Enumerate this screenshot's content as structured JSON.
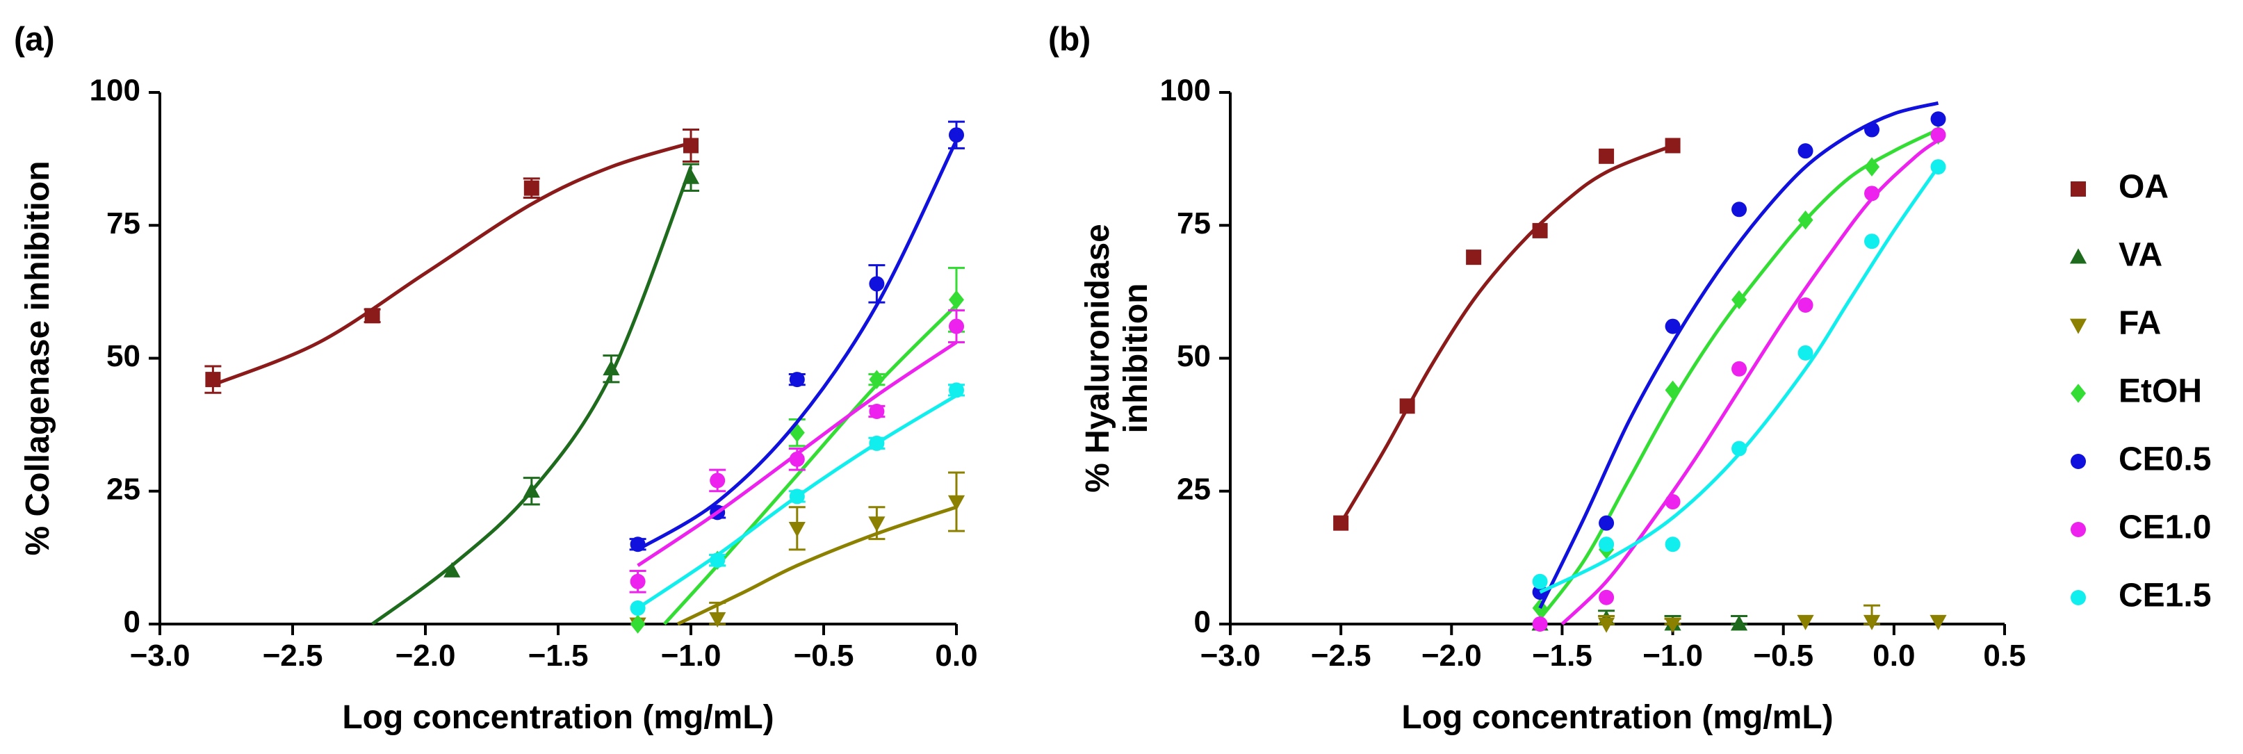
{
  "chart_data": [
    {
      "type": "scatter",
      "panel_label": "(a)",
      "title": "",
      "xlabel": "Log concentration (mg/mL)",
      "ylabel": "% Collagenase inhibition",
      "xlim": [
        -3.0,
        0.0
      ],
      "ylim": [
        0,
        100
      ],
      "x_ticks": [
        -3.0,
        -2.5,
        -2.0,
        -1.5,
        -1.0,
        -0.5,
        0.0
      ],
      "x_tick_labels": [
        "−3.0",
        "−2.5",
        "−2.0",
        "−1.5",
        "−1.0",
        "−0.5",
        "0.0"
      ],
      "y_ticks": [
        0,
        25,
        50,
        75,
        100
      ],
      "y_tick_labels": [
        "0",
        "25",
        "50",
        "75",
        "100"
      ],
      "series": [
        {
          "name": "OA",
          "color": "#8b1a1a",
          "marker": "square",
          "x": [
            -2.8,
            -2.2,
            -1.6,
            -1.0
          ],
          "y": [
            46,
            58,
            82,
            90
          ],
          "err": [
            2.5,
            1.2,
            1.8,
            3.0
          ],
          "fit": [
            [
              -2.8,
              45
            ],
            [
              -2.4,
              53
            ],
            [
              -2.0,
              66
            ],
            [
              -1.6,
              79
            ],
            [
              -1.3,
              86
            ],
            [
              -1.0,
              90.5
            ]
          ]
        },
        {
          "name": "VA",
          "color": "#1e6b1e",
          "marker": "triangle-up",
          "x": [
            -1.9,
            -1.6,
            -1.3,
            -1.0
          ],
          "y": [
            10,
            25,
            48,
            84
          ],
          "err": [
            0.5,
            2.5,
            2.5,
            2.5
          ],
          "fit": [
            [
              -2.2,
              0
            ],
            [
              -1.9,
              11
            ],
            [
              -1.6,
              25
            ],
            [
              -1.3,
              47
            ],
            [
              -1.0,
              86
            ]
          ]
        },
        {
          "name": "FA",
          "color": "#8b8000",
          "marker": "triangle-down",
          "x": [
            -1.2,
            -0.9,
            -0.6,
            -0.3,
            0.0
          ],
          "y": [
            0,
            1,
            18,
            19,
            23
          ],
          "err": [
            0.5,
            3.0,
            4.0,
            3.0,
            5.5
          ],
          "fit": [
            [
              -1.05,
              0
            ],
            [
              -0.8,
              6
            ],
            [
              -0.6,
              11
            ],
            [
              -0.3,
              17
            ],
            [
              0.0,
              22
            ]
          ]
        },
        {
          "name": "EtOH",
          "color": "#33dd33",
          "marker": "diamond",
          "x": [
            -1.2,
            -0.9,
            -0.6,
            -0.3,
            0.0
          ],
          "y": [
            0,
            12,
            36,
            46,
            61
          ],
          "err": [
            0.5,
            1.0,
            2.5,
            1.0,
            6.0
          ],
          "fit": [
            [
              -1.1,
              0
            ],
            [
              -0.9,
              11
            ],
            [
              -0.6,
              28
            ],
            [
              -0.3,
              45
            ],
            [
              0.0,
              60
            ]
          ]
        },
        {
          "name": "CE0.5",
          "color": "#1111dd",
          "marker": "circle",
          "x": [
            -1.2,
            -0.9,
            -0.6,
            -0.3,
            0.0
          ],
          "y": [
            15,
            21,
            46,
            64,
            92
          ],
          "err": [
            1.0,
            1.0,
            1.0,
            3.5,
            2.5
          ],
          "fit": [
            [
              -1.2,
              14
            ],
            [
              -0.9,
              23
            ],
            [
              -0.6,
              38
            ],
            [
              -0.3,
              60
            ],
            [
              0.0,
              91
            ]
          ]
        },
        {
          "name": "CE1.0",
          "color": "#ee22ee",
          "marker": "circle",
          "x": [
            -1.2,
            -0.9,
            -0.6,
            -0.3,
            0.0
          ],
          "y": [
            8,
            27,
            31,
            40,
            56
          ],
          "err": [
            2.0,
            2.0,
            2.0,
            1.0,
            3.0
          ],
          "fit": [
            [
              -1.2,
              11
            ],
            [
              -0.9,
              21
            ],
            [
              -0.6,
              32
            ],
            [
              -0.3,
              43
            ],
            [
              0.0,
              53
            ]
          ]
        },
        {
          "name": "CE1.5",
          "color": "#11eeee",
          "marker": "circle",
          "x": [
            -1.2,
            -0.9,
            -0.6,
            -0.3,
            0.0
          ],
          "y": [
            3,
            12,
            24,
            34,
            44
          ],
          "err": [
            0.5,
            1.0,
            1.0,
            1.0,
            1.0
          ],
          "fit": [
            [
              -1.2,
              3
            ],
            [
              -0.9,
              13
            ],
            [
              -0.6,
              24
            ],
            [
              -0.3,
              34
            ],
            [
              0.0,
              43
            ]
          ]
        }
      ]
    },
    {
      "type": "scatter",
      "panel_label": "(b)",
      "title": "",
      "xlabel": "Log concentration (mg/mL)",
      "ylabel": "% Hyaluronidase inhibition",
      "ylabel_lines": [
        "% Hyaluronidase",
        "inhibition"
      ],
      "xlim": [
        -3.0,
        0.5
      ],
      "ylim": [
        0,
        100
      ],
      "x_ticks": [
        -3.0,
        -2.5,
        -2.0,
        -1.5,
        -1.0,
        -0.5,
        0.0,
        0.5
      ],
      "x_tick_labels": [
        "−3.0",
        "−2.5",
        "−2.0",
        "−1.5",
        "−1.0",
        "−0.5",
        "0.0",
        "0.5"
      ],
      "y_ticks": [
        0,
        25,
        50,
        75,
        100
      ],
      "y_tick_labels": [
        "0",
        "25",
        "50",
        "75",
        "100"
      ],
      "series": [
        {
          "name": "OA",
          "color": "#8b1a1a",
          "marker": "square",
          "x": [
            -2.5,
            -2.2,
            -1.9,
            -1.6,
            -1.3,
            -1.0
          ],
          "y": [
            19,
            41,
            69,
            74,
            88,
            90
          ],
          "err": [
            0.5,
            0.5,
            0.5,
            0.5,
            0.5,
            0.5
          ],
          "fit": [
            [
              -2.5,
              19
            ],
            [
              -2.3,
              33
            ],
            [
              -2.1,
              48
            ],
            [
              -1.9,
              61
            ],
            [
              -1.7,
              71
            ],
            [
              -1.5,
              79
            ],
            [
              -1.3,
              85
            ],
            [
              -1.0,
              90
            ]
          ]
        },
        {
          "name": "VA",
          "color": "#1e6b1e",
          "marker": "triangle-up",
          "x": [
            -1.6,
            -1.3,
            -1.0,
            -0.7
          ],
          "y": [
            0,
            1,
            0,
            0
          ],
          "err": [
            0.5,
            1.5,
            1.5,
            1.5
          ],
          "fit": []
        },
        {
          "name": "FA",
          "color": "#8b8000",
          "marker": "triangle-down",
          "x": [
            -1.3,
            -1.0,
            -0.4,
            -0.1,
            0.2
          ],
          "y": [
            0,
            0,
            0.5,
            0.5,
            0.5
          ],
          "err": [
            1.5,
            1.0,
            0.5,
            3.0,
            0.5
          ],
          "fit": []
        },
        {
          "name": "EtOH",
          "color": "#33dd33",
          "marker": "diamond",
          "x": [
            -1.6,
            -1.3,
            -1.0,
            -0.7,
            -0.4,
            -0.1,
            0.2
          ],
          "y": [
            3,
            14,
            44,
            61,
            76,
            86,
            92
          ],
          "err": [
            0.5,
            0.5,
            0.5,
            0.5,
            0.5,
            0.5,
            0.5
          ],
          "fit": [
            [
              -1.6,
              1
            ],
            [
              -1.4,
              12
            ],
            [
              -1.2,
              27
            ],
            [
              -1.0,
              42
            ],
            [
              -0.8,
              55
            ],
            [
              -0.6,
              66
            ],
            [
              -0.4,
              76
            ],
            [
              -0.2,
              84
            ],
            [
              0.0,
              89
            ],
            [
              0.2,
              93
            ]
          ]
        },
        {
          "name": "CE0.5",
          "color": "#1111dd",
          "marker": "circle",
          "x": [
            -1.6,
            -1.3,
            -1.0,
            -0.7,
            -0.4,
            -0.1,
            0.2
          ],
          "y": [
            6,
            19,
            56,
            78,
            89,
            93,
            95
          ],
          "err": [
            0.5,
            0.5,
            0.5,
            0.5,
            0.5,
            0.5,
            0.5
          ],
          "fit": [
            [
              -1.6,
              3
            ],
            [
              -1.4,
              20
            ],
            [
              -1.2,
              38
            ],
            [
              -1.0,
              53
            ],
            [
              -0.8,
              66
            ],
            [
              -0.6,
              77
            ],
            [
              -0.4,
              86
            ],
            [
              -0.2,
              92
            ],
            [
              0.0,
              96
            ],
            [
              0.2,
              98
            ]
          ]
        },
        {
          "name": "CE1.0",
          "color": "#ee22ee",
          "marker": "circle",
          "x": [
            -1.6,
            -1.3,
            -1.0,
            -0.7,
            -0.4,
            -0.1,
            0.2
          ],
          "y": [
            0,
            5,
            23,
            48,
            60,
            81,
            92
          ],
          "err": [
            0.5,
            0.5,
            0.5,
            0.5,
            0.5,
            0.5,
            0.5
          ],
          "fit": [
            [
              -1.5,
              0
            ],
            [
              -1.3,
              8
            ],
            [
              -1.1,
              19
            ],
            [
              -0.9,
              31
            ],
            [
              -0.7,
              44
            ],
            [
              -0.5,
              57
            ],
            [
              -0.3,
              69
            ],
            [
              -0.1,
              80
            ],
            [
              0.1,
              88
            ],
            [
              0.2,
              91
            ]
          ]
        },
        {
          "name": "CE1.5",
          "color": "#11eeee",
          "marker": "circle",
          "x": [
            -1.6,
            -1.3,
            -1.0,
            -0.7,
            -0.4,
            -0.1,
            0.2
          ],
          "y": [
            8,
            15,
            15,
            33,
            51,
            72,
            86
          ],
          "err": [
            0.5,
            0.5,
            0.5,
            0.5,
            0.5,
            0.5,
            0.5
          ],
          "fit": [
            [
              -1.6,
              6
            ],
            [
              -1.3,
              12
            ],
            [
              -1.0,
              20
            ],
            [
              -0.7,
              32
            ],
            [
              -0.4,
              48
            ],
            [
              -0.2,
              61
            ],
            [
              0.0,
              74
            ],
            [
              0.2,
              86
            ]
          ]
        }
      ]
    }
  ],
  "legend": {
    "placement": "right",
    "entries": [
      {
        "name": "OA",
        "color": "#8b1a1a",
        "marker": "square"
      },
      {
        "name": "VA",
        "color": "#1e6b1e",
        "marker": "triangle-up"
      },
      {
        "name": "FA",
        "color": "#8b8000",
        "marker": "triangle-down"
      },
      {
        "name": "EtOH",
        "color": "#33dd33",
        "marker": "diamond"
      },
      {
        "name": "CE0.5",
        "color": "#1111dd",
        "marker": "circle"
      },
      {
        "name": "CE1.0",
        "color": "#ee22ee",
        "marker": "circle"
      },
      {
        "name": "CE1.5",
        "color": "#11eeee",
        "marker": "circle"
      }
    ]
  }
}
